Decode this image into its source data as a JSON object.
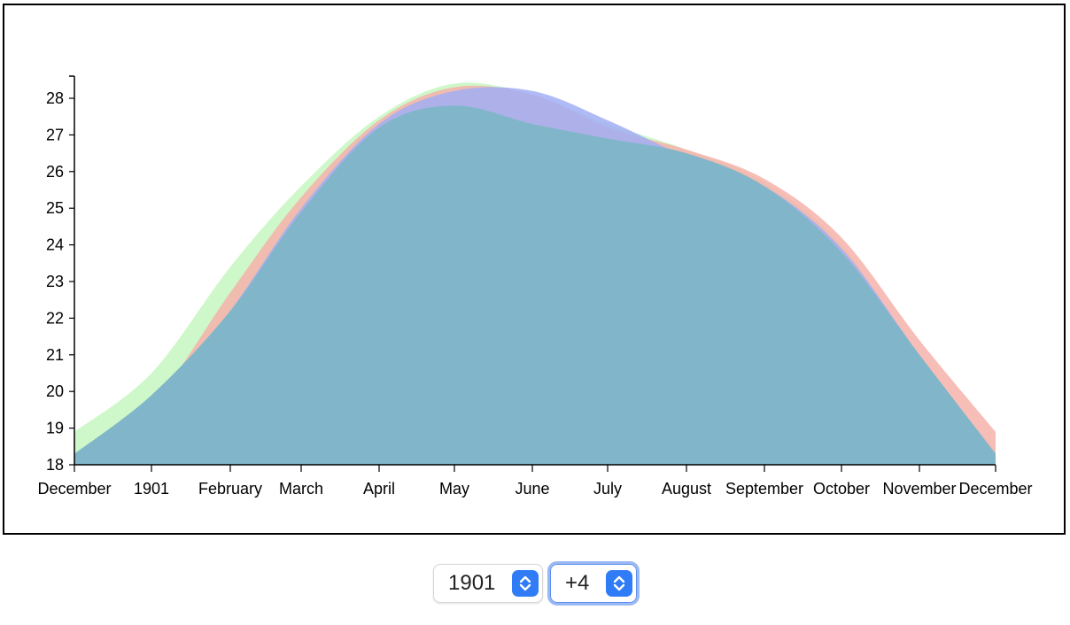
{
  "chart_data": {
    "type": "area",
    "title": "",
    "xlabel": "",
    "ylabel": "",
    "ylim": [
      18,
      28.6
    ],
    "x_tick_labels": [
      "December",
      "1901",
      "February",
      "March",
      "April",
      "May",
      "June",
      "July",
      "August",
      "September",
      "October",
      "November",
      "December"
    ],
    "y_ticks": [
      18,
      19,
      20,
      21,
      22,
      23,
      24,
      25,
      26,
      27,
      28
    ],
    "series": [
      {
        "color": "#c6f7bf",
        "values": [
          18.9,
          20.5,
          23.4,
          25.6,
          27.5,
          28.4,
          28.1,
          27.3,
          26.6,
          25.7,
          24.0,
          20.9,
          18.4
        ]
      },
      {
        "color": "#f6b2aa",
        "values": [
          17.9,
          19.6,
          22.7,
          25.3,
          27.4,
          28.3,
          28.1,
          27.2,
          26.6,
          25.8,
          24.2,
          21.4,
          18.9
        ]
      },
      {
        "color": "#a2aef5",
        "values": [
          17.9,
          19.6,
          22.2,
          25.0,
          27.3,
          28.2,
          28.2,
          27.4,
          26.4,
          25.6,
          23.9,
          21.0,
          18.3
        ]
      },
      {
        "color": "#81b6ca",
        "values": [
          18.3,
          19.9,
          22.2,
          24.9,
          27.2,
          27.8,
          27.3,
          26.9,
          26.5,
          25.6,
          23.8,
          21.0,
          18.3
        ]
      }
    ]
  },
  "controls": {
    "year": "1901",
    "offset": "+4"
  }
}
